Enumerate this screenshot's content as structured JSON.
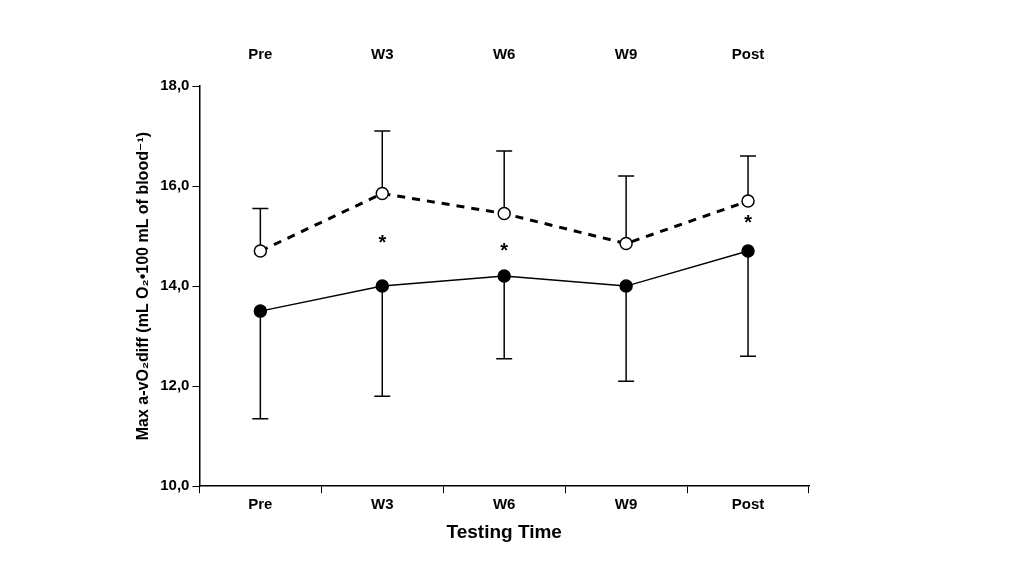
{
  "chart_data": {
    "type": "line",
    "categories": [
      "Pre",
      "W3",
      "W6",
      "W9",
      "Post"
    ],
    "x_label": "Testing Time",
    "y_label": "Max a-vO₂diff (mL O₂•100 mL of blood⁻¹)",
    "ylim": [
      10,
      18
    ],
    "yticks": [
      {
        "value": 10,
        "label": "10,0"
      },
      {
        "value": 12,
        "label": "12,0"
      },
      {
        "value": 14,
        "label": "14,0"
      },
      {
        "value": 16,
        "label": "16,0"
      },
      {
        "value": 18,
        "label": "18,0"
      }
    ],
    "grid": false,
    "series": [
      {
        "color": "#000000",
        "marker": "open_circle",
        "line_style": "dashed",
        "values": [
          14.7,
          15.85,
          15.45,
          14.85,
          15.7
        ],
        "error_upper": [
          0.85,
          1.25,
          1.25,
          1.35,
          0.9
        ]
      },
      {
        "color": "#000000",
        "marker": "circle",
        "line_style": "solid",
        "values": [
          13.5,
          14.0,
          14.2,
          14.0,
          14.7
        ],
        "error_lower": [
          2.15,
          2.2,
          1.65,
          1.9,
          2.1
        ]
      }
    ],
    "annotations": [
      {
        "text": "*",
        "x": "W3",
        "y": 14.85
      },
      {
        "text": "*",
        "x": "W6",
        "y": 14.7
      },
      {
        "text": "*",
        "x": "Post",
        "y": 15.25
      }
    ]
  }
}
